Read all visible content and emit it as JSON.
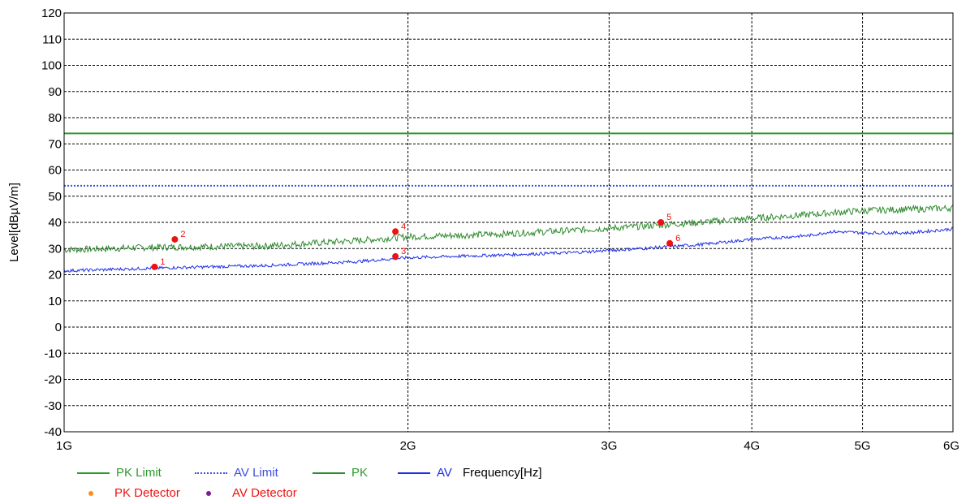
{
  "colors": {
    "pk_limit": "#2e9a2e",
    "av_limit": "#3b4fe0",
    "pk": "#2e8b2e",
    "av": "#1f2fe6",
    "pk_detector": "#ff8c1a",
    "av_detector": "#7a1f8f",
    "marker": "#ee1111",
    "grid": "#000000"
  },
  "chart_data": {
    "type": "line",
    "xscale": "log",
    "xlim": [
      1000000000,
      6000000000
    ],
    "ylim": [
      -40,
      120
    ],
    "ylabel": "Level[dBµV/m]",
    "xlabel": "Frequency[Hz]",
    "yticks": [
      -40,
      -30,
      -20,
      -10,
      0,
      10,
      20,
      30,
      40,
      50,
      60,
      70,
      80,
      90,
      100,
      110,
      120
    ],
    "xticks": [
      {
        "value": 1000000000,
        "label": "1G"
      },
      {
        "value": 2000000000,
        "label": "2G"
      },
      {
        "value": 3000000000,
        "label": "3G"
      },
      {
        "value": 4000000000,
        "label": "4G"
      },
      {
        "value": 5000000000,
        "label": "5G"
      },
      {
        "value": 6000000000,
        "label": "6G"
      }
    ],
    "grid": true,
    "legend_position": "bottom-left",
    "series": [
      {
        "name": "PK Limit",
        "style": "solid",
        "x": [
          1000000000,
          6000000000
        ],
        "y": [
          74,
          74
        ]
      },
      {
        "name": "AV Limit",
        "style": "dotted",
        "x": [
          1000000000,
          6000000000
        ],
        "y": [
          54,
          54
        ]
      },
      {
        "name": "PK",
        "style": "solid",
        "x": [
          1000000000,
          1200000000,
          1500000000,
          1800000000,
          2000000000,
          2400000000,
          2800000000,
          3200000000,
          3600000000,
          4000000000,
          4500000000,
          5000000000,
          5500000000,
          6000000000
        ],
        "y": [
          29.5,
          30.5,
          31,
          33,
          34.5,
          35.5,
          37,
          38.5,
          40,
          41.5,
          43,
          44.5,
          45,
          45.5
        ]
      },
      {
        "name": "AV",
        "style": "solid",
        "x": [
          1000000000,
          1200000000,
          1500000000,
          1800000000,
          2000000000,
          2400000000,
          2800000000,
          3200000000,
          3600000000,
          4000000000,
          4500000000,
          4700000000,
          5000000000,
          5500000000,
          6000000000
        ],
        "y": [
          21.5,
          22.5,
          23.5,
          25,
          26.5,
          27.5,
          28.5,
          30,
          31.5,
          33.5,
          35,
          36.5,
          36,
          36,
          37.5
        ]
      }
    ],
    "markers": [
      {
        "label": "1",
        "x": 1200000000,
        "y": 23
      },
      {
        "label": "2",
        "x": 1250000000,
        "y": 33.5
      },
      {
        "label": "3",
        "x": 1950000000,
        "y": 27
      },
      {
        "label": "4",
        "x": 1950000000,
        "y": 36.5
      },
      {
        "label": "5",
        "x": 3330000000,
        "y": 40
      },
      {
        "label": "6",
        "x": 3390000000,
        "y": 32
      }
    ]
  },
  "legend": [
    {
      "label": "PK Limit",
      "kind": "line",
      "style": "solid",
      "color": "#2e9a2e",
      "text_color": "#2e9a2e"
    },
    {
      "label": "AV Limit",
      "kind": "line",
      "style": "dotted",
      "color": "#3b4fe0",
      "text_color": "#3b4fe0"
    },
    {
      "label": "PK",
      "kind": "line",
      "style": "solid",
      "color": "#2e8b2e",
      "text_color": "#2e9a2e"
    },
    {
      "label": "AV",
      "kind": "line",
      "style": "solid",
      "color": "#1f2fe6",
      "text_color": "#1f2fe6"
    },
    {
      "label": "PK Detector",
      "kind": "dot",
      "color": "#ff8c1a",
      "text_color": "#ee1111"
    },
    {
      "label": "AV Detector",
      "kind": "dot",
      "color": "#7a1f8f",
      "text_color": "#ee1111"
    }
  ]
}
